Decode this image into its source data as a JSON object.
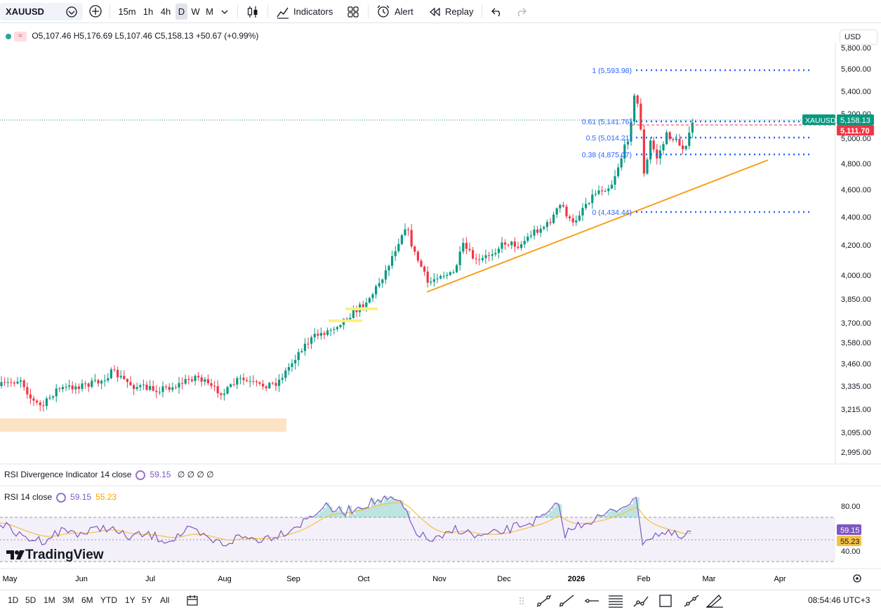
{
  "toolbar": {
    "symbol": "XAUUSD",
    "intervals": [
      "15m",
      "1h",
      "4h",
      "D",
      "W",
      "M"
    ],
    "active_interval": "D",
    "indicators_label": "Indicators",
    "alert_label": "Alert",
    "replay_label": "Replay"
  },
  "legend": {
    "open": "O5,107.46",
    "high": "H5,176.69",
    "low": "L5,107.46",
    "close": "C5,158.13",
    "change": "+50.67 (+0.99%)"
  },
  "currency": "USD",
  "price_axis": {
    "top_partial": "5,800.00",
    "ticks": [
      "5,600.00",
      "5,400.00",
      "5,200.00",
      "5,000.00",
      "4,800.00",
      "4,600.00",
      "4,400.00",
      "4,200.00",
      "4,000.00",
      "3,850.00",
      "3,700.00",
      "3,580.00",
      "3,460.00",
      "3,335.00",
      "3,215.00",
      "3,095.00",
      "2,995.00"
    ],
    "symbol_label": "XAUUSD",
    "last_price": "5,158.13",
    "prev_price": "5,111.70"
  },
  "fib_labels": [
    "1 (5,593.98)",
    "0.61 (5,141.76)",
    "0.5 (5,014.21)",
    "0.38 (4,875.07)",
    "0 (4,434.44)"
  ],
  "rsi_div": {
    "title": "RSI Divergence Indicator 14 close",
    "value": "59.15",
    "extra": "∅ ∅ ∅ ∅"
  },
  "rsi": {
    "title": "RSI 14 close",
    "value": "59.15",
    "ma_value": "55.23",
    "axis_80": "80.00",
    "axis_40": "40.00"
  },
  "time_axis": [
    "May",
    "Jun",
    "Jul",
    "Aug",
    "Sep",
    "Oct",
    "Nov",
    "Dec",
    "2026",
    "Feb",
    "Mar",
    "Apr"
  ],
  "ranges": [
    "1D",
    "5D",
    "1M",
    "3M",
    "6M",
    "YTD",
    "1Y",
    "5Y",
    "All"
  ],
  "clock": "08:54:46 UTC+3",
  "logo_text": "TradingView",
  "colors": {
    "up": "#089981",
    "down": "#f23645",
    "fib": "#2962ff",
    "trend": "#f7a01a",
    "rsi": "#7e57c2",
    "rsi_ma": "#f5c242"
  }
}
